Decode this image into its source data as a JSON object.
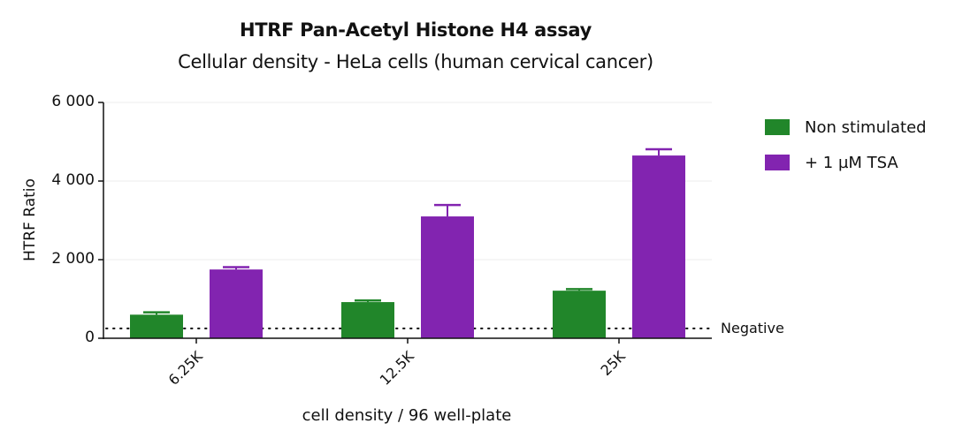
{
  "chart_data": {
    "type": "bar",
    "title": "HTRF Pan-Acetyl Histone H4 assay",
    "subtitle": "Cellular density - HeLa cells (human cervical cancer)",
    "xlabel": "cell density / 96 well-plate",
    "ylabel": "HTRF Ratio",
    "ylim": [
      0,
      6000
    ],
    "yticks": [
      0,
      2000,
      4000,
      6000
    ],
    "ytick_labels": [
      "0",
      "2 000",
      "4 000",
      "6 000"
    ],
    "categories": [
      "6.25K",
      "12.5K",
      "25K"
    ],
    "series": [
      {
        "name": "Non stimulated",
        "color": "#21862A",
        "values": [
          600,
          920,
          1210
        ],
        "error": [
          60,
          40,
          40
        ]
      },
      {
        "name": "+ 1 µM TSA",
        "color": "#8224B0",
        "values": [
          1750,
          3100,
          4650
        ],
        "error": [
          60,
          290,
          160
        ]
      }
    ],
    "reference_lines": [
      {
        "label": "Negative",
        "value": 250,
        "style": "dotted"
      }
    ],
    "grid": "horizontal light",
    "legend_position": "right"
  },
  "labels": {
    "title": "HTRF Pan-Acetyl Histone H4 assay",
    "subtitle": "Cellular density - HeLa cells (human cervical cancer)",
    "xlabel": "cell density / 96 well-plate",
    "ylabel": "HTRF Ratio",
    "negative": "Negative",
    "legend": [
      "Non stimulated",
      "+ 1 µM TSA"
    ]
  }
}
